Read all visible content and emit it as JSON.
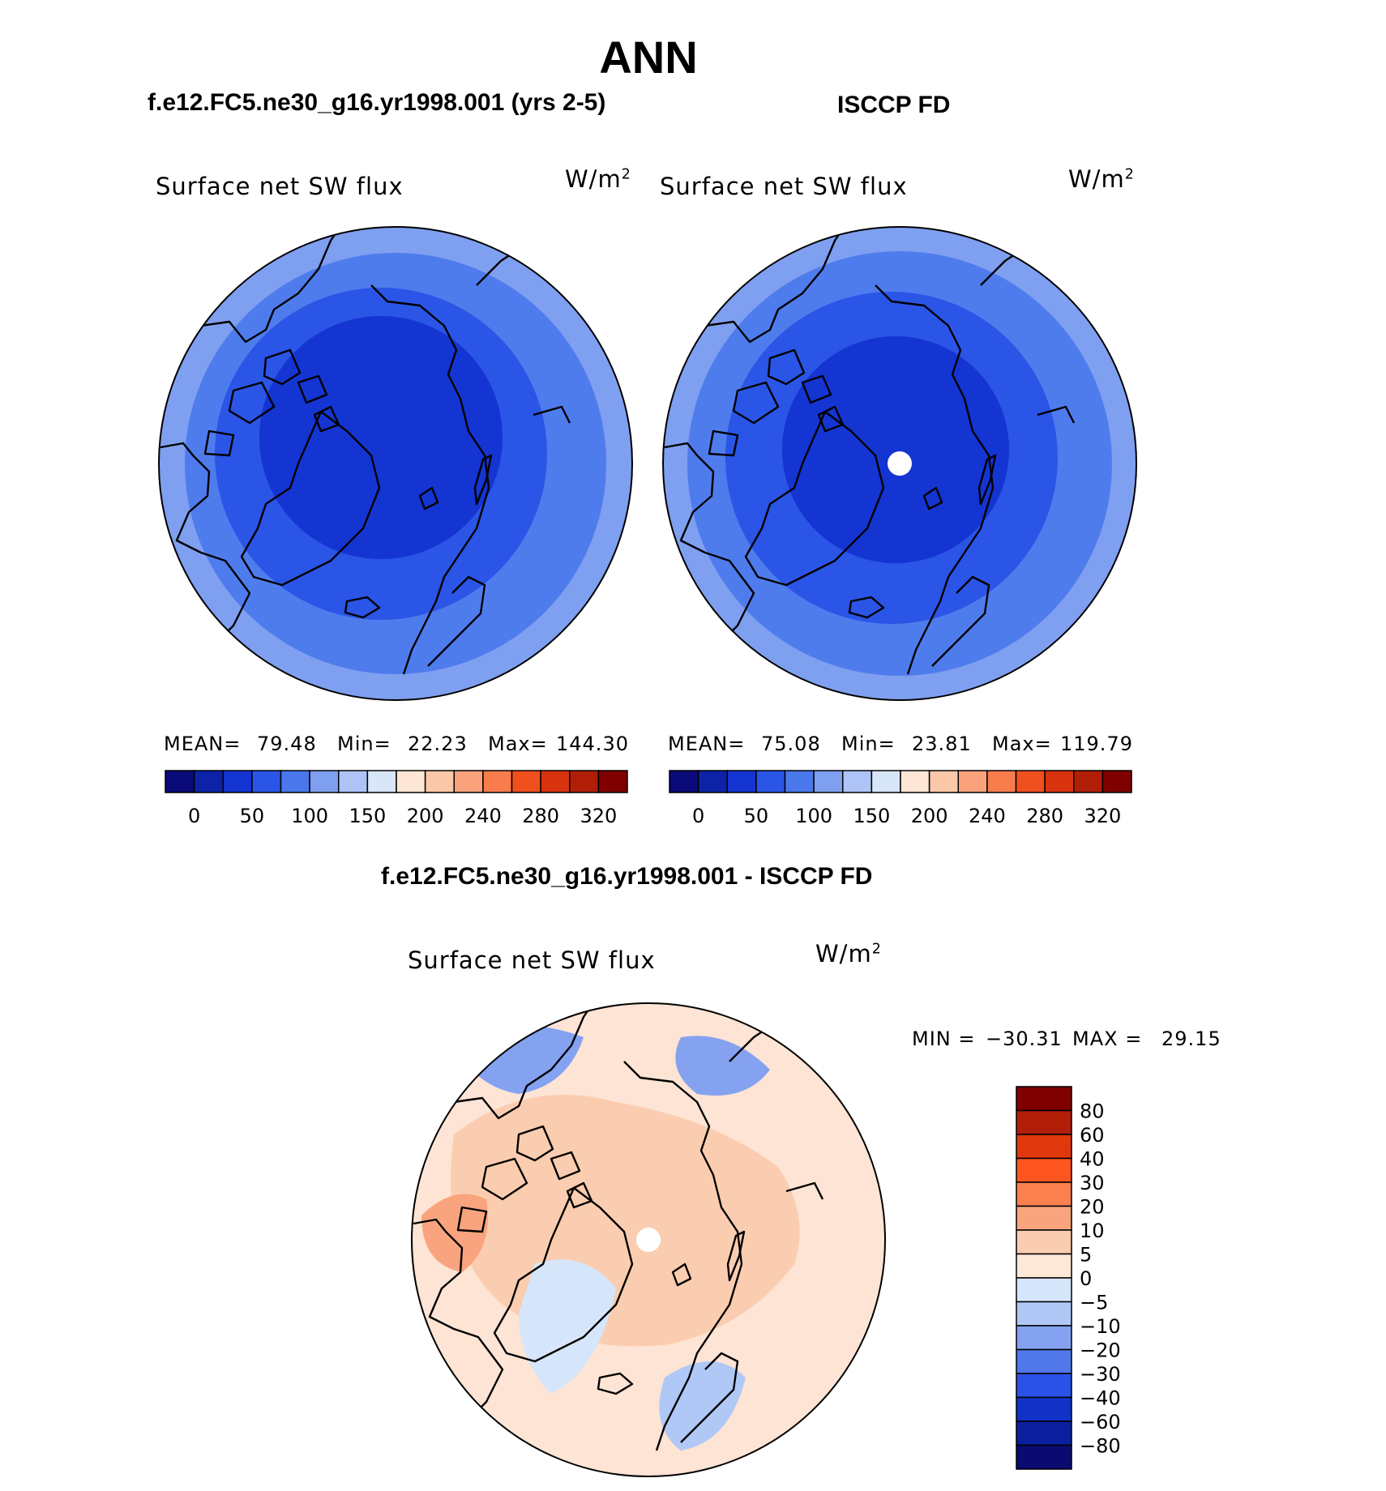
{
  "main_title": "ANN",
  "panels": [
    {
      "title": "f.e12.FC5.ne30_g16.yr1998.001 (yrs 2-5)",
      "variable": "Surface net SW flux",
      "units_base": "W/m",
      "units_exp": "2",
      "stats": {
        "mean_label": "MEAN=",
        "mean": "79.48",
        "min_label": "Min=",
        "min": "22.23",
        "max_label": "Max=",
        "max": "144.30"
      }
    },
    {
      "title": "ISCCP FD",
      "variable": "Surface net SW flux",
      "units_base": "W/m",
      "units_exp": "2",
      "stats": {
        "mean_label": "MEAN=",
        "mean": "75.08",
        "min_label": "Min=",
        "min": "23.81",
        "max_label": "Max=",
        "max": "119.79"
      }
    },
    {
      "title": "f.e12.FC5.ne30_g16.yr1998.001 - ISCCP FD",
      "variable": "Surface net SW flux",
      "units_base": "W/m",
      "units_exp": "2",
      "stats": {
        "min_label": "MIN =",
        "min": "−30.31",
        "max_label": "MAX =",
        "max": "29.15"
      }
    }
  ],
  "abs_colorbar": {
    "tick_labels": [
      "0",
      "50",
      "100",
      "150",
      "200",
      "240",
      "280",
      "320"
    ],
    "colors": [
      "#0a0a78",
      "#0c23a8",
      "#1435d2",
      "#2a55e6",
      "#4a78ec",
      "#7f9ff0",
      "#aec4f6",
      "#d8e6fa",
      "#fde6d6",
      "#fbc7a9",
      "#f9a27c",
      "#f97c4c",
      "#f0501e",
      "#d8330e",
      "#b01e08",
      "#800000"
    ]
  },
  "diff_colorbar": {
    "tick_labels": [
      "80",
      "60",
      "40",
      "30",
      "20",
      "10",
      "5",
      "0",
      "−5",
      "−10",
      "−20",
      "−30",
      "−40",
      "−60",
      "−80"
    ],
    "colors": [
      "#800000",
      "#b01e08",
      "#e0380c",
      "#ff5520",
      "#fb8050",
      "#f9a47e",
      "#fbcdb0",
      "#fde8d8",
      "#d6e6fa",
      "#b0c8f6",
      "#84a2f0",
      "#5078ea",
      "#2a52e6",
      "#1232c6",
      "#0a1e9e",
      "#0a0a70"
    ]
  },
  "map_fields": {
    "model_fill": "#1f45e0",
    "obs_fill": "#2149e4",
    "diff_fill": "#fde4d4",
    "missing_value_fill": "#ffffff",
    "coastline_color": "#000000"
  }
}
